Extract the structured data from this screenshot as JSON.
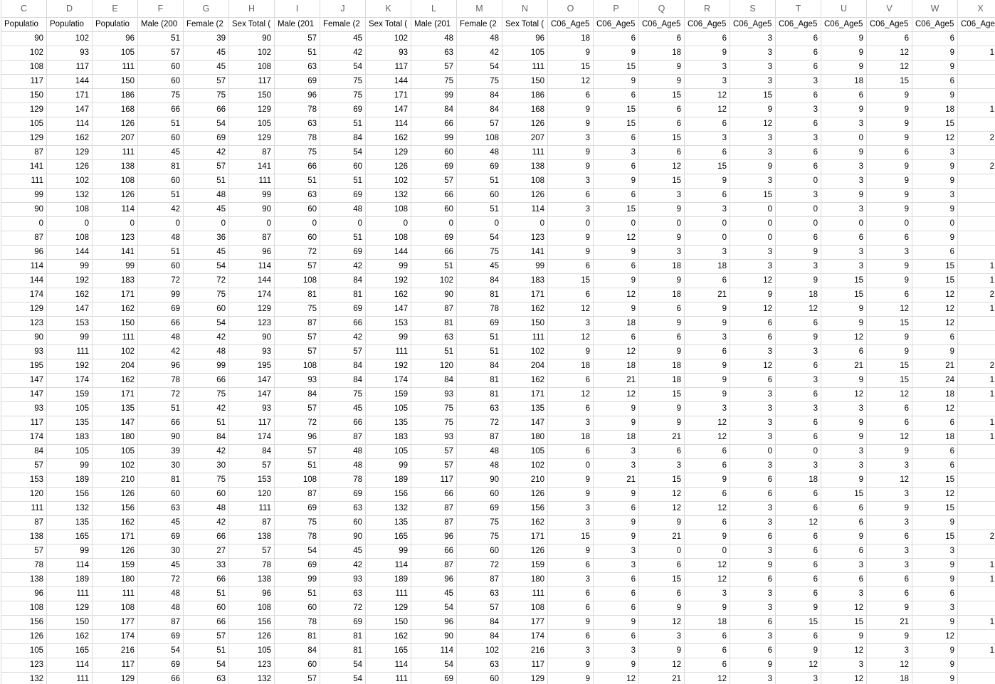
{
  "app": {
    "kind": "spreadsheet",
    "visible_columns_note": "columns C through X, column X clipped at right screen edge"
  },
  "colors": {
    "background": "#ffffff",
    "gridline": "#d9d9d9",
    "column_letter_text": "#5f6368",
    "cell_text": "#000000"
  },
  "sheet": {
    "column_letters": [
      "C",
      "D",
      "E",
      "F",
      "G",
      "H",
      "I",
      "J",
      "K",
      "L",
      "M",
      "N",
      "O",
      "P",
      "Q",
      "R",
      "S",
      "T",
      "U",
      "V",
      "W",
      "X"
    ],
    "header_labels": [
      "Populatio",
      "Populatio",
      "Populatio",
      "Male (200",
      "Female (2",
      "Sex Total (",
      "Male (201",
      "Female (2",
      "Sex Total (",
      "Male (201",
      "Female (2",
      "Sex Total (",
      "C06_Age5",
      "C06_Age5",
      "C06_Age5",
      "C06_Age5",
      "C06_Age5",
      "C06_Age5",
      "C06_Age5",
      "C06_Age5",
      "C06_Age5",
      "C06_Age"
    ],
    "rows": [
      [
        90,
        102,
        96,
        51,
        39,
        90,
        57,
        45,
        102,
        48,
        48,
        96,
        18,
        6,
        6,
        6,
        3,
        6,
        9,
        6,
        6,
        ""
      ],
      [
        102,
        93,
        105,
        57,
        45,
        102,
        51,
        42,
        93,
        63,
        42,
        105,
        9,
        9,
        18,
        9,
        3,
        6,
        9,
        12,
        9,
        "1"
      ],
      [
        108,
        117,
        111,
        60,
        45,
        108,
        63,
        54,
        117,
        57,
        54,
        111,
        15,
        15,
        9,
        3,
        3,
        6,
        9,
        12,
        9,
        ""
      ],
      [
        117,
        144,
        150,
        60,
        57,
        117,
        69,
        75,
        144,
        75,
        75,
        150,
        12,
        9,
        9,
        3,
        3,
        3,
        18,
        15,
        6,
        ""
      ],
      [
        150,
        171,
        186,
        75,
        75,
        150,
        96,
        75,
        171,
        99,
        84,
        186,
        6,
        6,
        15,
        12,
        15,
        6,
        6,
        9,
        9,
        ""
      ],
      [
        129,
        147,
        168,
        66,
        66,
        129,
        78,
        69,
        147,
        84,
        84,
        168,
        9,
        15,
        6,
        12,
        9,
        3,
        9,
        9,
        18,
        "1"
      ],
      [
        105,
        114,
        126,
        51,
        54,
        105,
        63,
        51,
        114,
        66,
        57,
        126,
        9,
        15,
        6,
        6,
        12,
        6,
        3,
        9,
        15,
        ""
      ],
      [
        129,
        162,
        207,
        60,
        69,
        129,
        78,
        84,
        162,
        99,
        108,
        207,
        3,
        6,
        15,
        3,
        3,
        3,
        0,
        9,
        12,
        "2"
      ],
      [
        87,
        129,
        111,
        45,
        42,
        87,
        75,
        54,
        129,
        60,
        48,
        111,
        9,
        3,
        6,
        6,
        3,
        6,
        9,
        6,
        3,
        ""
      ],
      [
        141,
        126,
        138,
        81,
        57,
        141,
        66,
        60,
        126,
        69,
        69,
        138,
        9,
        6,
        12,
        15,
        9,
        6,
        3,
        9,
        9,
        "2"
      ],
      [
        111,
        102,
        108,
        60,
        51,
        111,
        51,
        51,
        102,
        57,
        51,
        108,
        3,
        9,
        15,
        9,
        3,
        0,
        3,
        9,
        9,
        ""
      ],
      [
        99,
        132,
        126,
        51,
        48,
        99,
        63,
        69,
        132,
        66,
        60,
        126,
        6,
        6,
        3,
        6,
        15,
        3,
        9,
        9,
        3,
        ""
      ],
      [
        90,
        108,
        114,
        42,
        45,
        90,
        60,
        48,
        108,
        60,
        51,
        114,
        3,
        15,
        9,
        3,
        0,
        0,
        3,
        9,
        9,
        ""
      ],
      [
        0,
        0,
        0,
        0,
        0,
        0,
        0,
        0,
        0,
        0,
        0,
        0,
        0,
        0,
        0,
        0,
        0,
        0,
        0,
        0,
        0,
        ""
      ],
      [
        87,
        108,
        123,
        48,
        36,
        87,
        60,
        51,
        108,
        69,
        54,
        123,
        9,
        12,
        9,
        0,
        0,
        6,
        6,
        6,
        9,
        ""
      ],
      [
        96,
        144,
        141,
        51,
        45,
        96,
        72,
        69,
        144,
        66,
        75,
        141,
        9,
        9,
        3,
        3,
        3,
        9,
        3,
        3,
        6,
        ""
      ],
      [
        114,
        99,
        99,
        60,
        54,
        114,
        57,
        42,
        99,
        51,
        45,
        99,
        6,
        6,
        18,
        18,
        3,
        3,
        3,
        9,
        15,
        "1"
      ],
      [
        144,
        192,
        183,
        72,
        72,
        144,
        108,
        84,
        192,
        102,
        84,
        183,
        15,
        9,
        9,
        6,
        12,
        9,
        15,
        9,
        15,
        "1"
      ],
      [
        174,
        162,
        171,
        99,
        75,
        174,
        81,
        81,
        162,
        90,
        81,
        171,
        6,
        12,
        18,
        21,
        9,
        18,
        15,
        6,
        12,
        "2"
      ],
      [
        129,
        147,
        162,
        69,
        60,
        129,
        75,
        69,
        147,
        87,
        78,
        162,
        12,
        9,
        6,
        9,
        12,
        12,
        9,
        12,
        12,
        "1"
      ],
      [
        123,
        153,
        150,
        66,
        54,
        123,
        87,
        66,
        153,
        81,
        69,
        150,
        3,
        18,
        9,
        9,
        6,
        6,
        9,
        15,
        12,
        ""
      ],
      [
        90,
        99,
        111,
        48,
        42,
        90,
        57,
        42,
        99,
        63,
        51,
        111,
        12,
        6,
        6,
        3,
        6,
        9,
        12,
        9,
        6,
        ""
      ],
      [
        93,
        111,
        102,
        42,
        48,
        93,
        57,
        57,
        111,
        51,
        51,
        102,
        9,
        12,
        9,
        6,
        3,
        3,
        6,
        9,
        9,
        ""
      ],
      [
        195,
        192,
        204,
        96,
        99,
        195,
        108,
        84,
        192,
        120,
        84,
        204,
        18,
        18,
        18,
        9,
        12,
        6,
        21,
        15,
        21,
        "2"
      ],
      [
        147,
        174,
        162,
        78,
        66,
        147,
        93,
        84,
        174,
        84,
        81,
        162,
        6,
        21,
        18,
        9,
        6,
        3,
        9,
        15,
        24,
        "1"
      ],
      [
        147,
        159,
        171,
        72,
        75,
        147,
        84,
        75,
        159,
        93,
        81,
        171,
        12,
        12,
        15,
        9,
        3,
        6,
        12,
        12,
        18,
        "1"
      ],
      [
        93,
        105,
        135,
        51,
        42,
        93,
        57,
        45,
        105,
        75,
        63,
        135,
        6,
        9,
        9,
        3,
        3,
        3,
        3,
        6,
        12,
        ""
      ],
      [
        117,
        135,
        147,
        66,
        51,
        117,
        72,
        66,
        135,
        75,
        72,
        147,
        3,
        9,
        9,
        12,
        3,
        6,
        9,
        6,
        6,
        "1"
      ],
      [
        174,
        183,
        180,
        90,
        84,
        174,
        96,
        87,
        183,
        93,
        87,
        180,
        18,
        18,
        21,
        12,
        3,
        6,
        9,
        12,
        18,
        "1"
      ],
      [
        84,
        105,
        105,
        39,
        42,
        84,
        57,
        48,
        105,
        57,
        48,
        105,
        6,
        3,
        6,
        6,
        0,
        0,
        3,
        9,
        6,
        ""
      ],
      [
        57,
        99,
        102,
        30,
        30,
        57,
        51,
        48,
        99,
        57,
        48,
        102,
        0,
        3,
        3,
        6,
        3,
        3,
        3,
        3,
        6,
        ""
      ],
      [
        153,
        189,
        210,
        81,
        75,
        153,
        108,
        78,
        189,
        117,
        90,
        210,
        9,
        21,
        15,
        9,
        6,
        18,
        9,
        12,
        15,
        ""
      ],
      [
        120,
        156,
        126,
        60,
        60,
        120,
        87,
        69,
        156,
        66,
        60,
        126,
        9,
        9,
        12,
        6,
        6,
        6,
        15,
        3,
        12,
        ""
      ],
      [
        111,
        132,
        156,
        63,
        48,
        111,
        69,
        63,
        132,
        87,
        69,
        156,
        3,
        6,
        12,
        12,
        3,
        6,
        6,
        9,
        15,
        ""
      ],
      [
        87,
        135,
        162,
        45,
        42,
        87,
        75,
        60,
        135,
        87,
        75,
        162,
        3,
        9,
        9,
        6,
        3,
        12,
        6,
        3,
        9,
        ""
      ],
      [
        138,
        165,
        171,
        69,
        66,
        138,
        78,
        90,
        165,
        96,
        75,
        171,
        15,
        9,
        21,
        9,
        6,
        6,
        9,
        6,
        15,
        "2"
      ],
      [
        57,
        99,
        126,
        30,
        27,
        57,
        54,
        45,
        99,
        66,
        60,
        126,
        9,
        3,
        0,
        0,
        3,
        6,
        6,
        3,
        3,
        ""
      ],
      [
        78,
        114,
        159,
        45,
        33,
        78,
        69,
        42,
        114,
        87,
        72,
        159,
        6,
        3,
        6,
        12,
        9,
        6,
        3,
        3,
        9,
        "1"
      ],
      [
        138,
        189,
        180,
        72,
        66,
        138,
        99,
        93,
        189,
        96,
        87,
        180,
        3,
        6,
        15,
        12,
        6,
        6,
        6,
        6,
        9,
        "1"
      ],
      [
        96,
        111,
        111,
        48,
        51,
        96,
        51,
        63,
        111,
        45,
        63,
        111,
        6,
        6,
        6,
        3,
        3,
        6,
        3,
        6,
        6,
        ""
      ],
      [
        108,
        129,
        108,
        48,
        60,
        108,
        60,
        72,
        129,
        54,
        57,
        108,
        6,
        6,
        9,
        9,
        3,
        9,
        12,
        9,
        3,
        ""
      ],
      [
        156,
        150,
        177,
        87,
        66,
        156,
        78,
        69,
        150,
        96,
        84,
        177,
        9,
        9,
        12,
        18,
        6,
        15,
        15,
        21,
        9,
        "1"
      ],
      [
        126,
        162,
        174,
        69,
        57,
        126,
        81,
        81,
        162,
        90,
        84,
        174,
        6,
        6,
        3,
        6,
        3,
        6,
        9,
        9,
        12,
        ""
      ],
      [
        105,
        165,
        216,
        54,
        51,
        105,
        84,
        81,
        165,
        114,
        102,
        216,
        3,
        3,
        9,
        6,
        6,
        9,
        12,
        3,
        9,
        "1"
      ],
      [
        123,
        114,
        117,
        69,
        54,
        123,
        60,
        54,
        114,
        54,
        63,
        117,
        9,
        9,
        12,
        6,
        9,
        12,
        3,
        12,
        9,
        ""
      ],
      [
        132,
        111,
        129,
        66,
        63,
        132,
        57,
        54,
        111,
        69,
        60,
        129,
        9,
        12,
        21,
        12,
        3,
        3,
        12,
        18,
        9,
        ""
      ]
    ]
  }
}
